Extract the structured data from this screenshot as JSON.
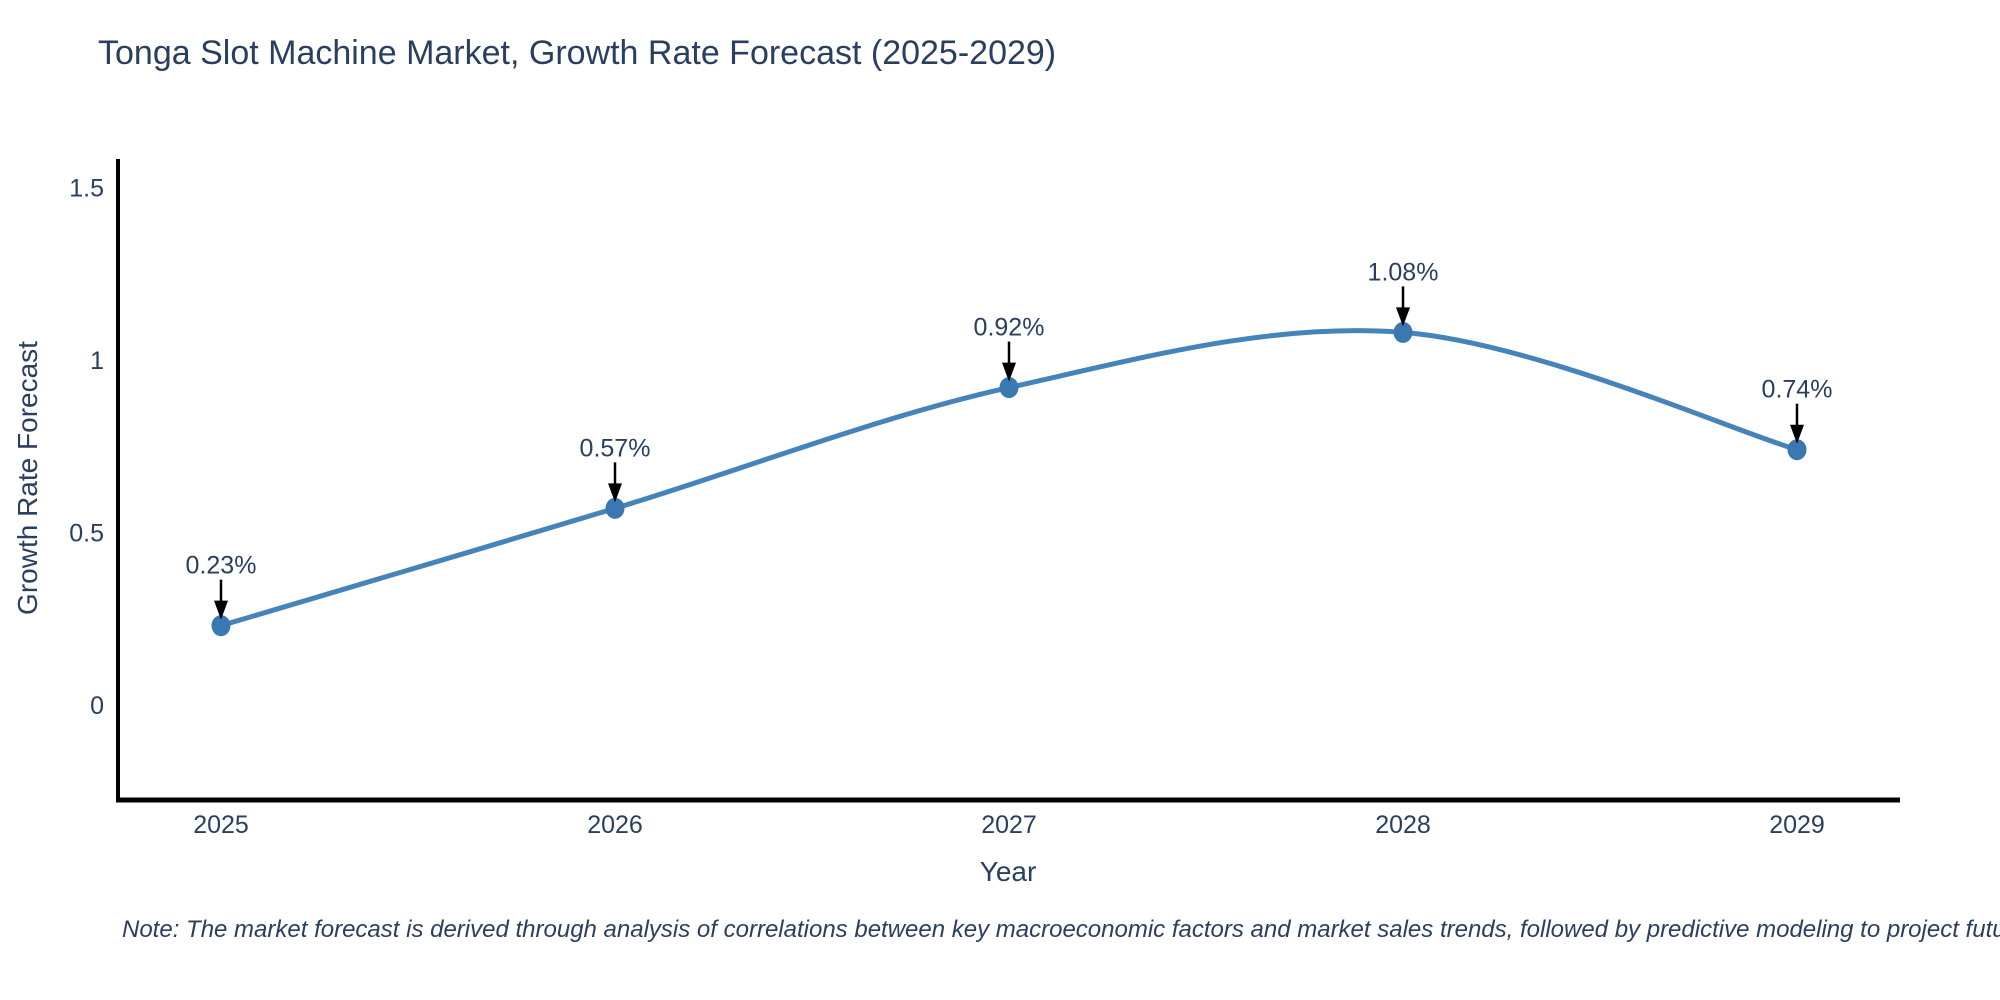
{
  "page": {
    "background": "#ffffff"
  },
  "note": "Note: The market forecast is derived through analysis of correlations between key macroeconomic factors and market sales trends, followed by predictive modeling to project future sales",
  "chart_data": {
    "type": "line",
    "title": "Tonga Slot Machine Market, Growth Rate Forecast (2025-2029)",
    "xlabel": "Year",
    "ylabel": "Growth Rate Forecast",
    "x": [
      2025,
      2026,
      2027,
      2028,
      2029
    ],
    "series": [
      {
        "name": "Growth Rate Forecast",
        "values": [
          0.23,
          0.57,
          0.92,
          1.08,
          0.74
        ]
      }
    ],
    "point_labels": [
      "0.23%",
      "0.57%",
      "0.92%",
      "1.08%",
      "0.74%"
    ],
    "xtick_labels": [
      "2025",
      "2026",
      "2027",
      "2028",
      "2029"
    ],
    "yticks": [
      0,
      0.5,
      1,
      1.5
    ],
    "ytick_labels": [
      "0",
      "0.5",
      "1",
      "1.5"
    ],
    "ylim": [
      -0.3,
      1.6
    ],
    "line_shape": "spline",
    "grid": false,
    "legend": "none",
    "colors": {
      "line": "#4584ba",
      "marker": "#3a78b2",
      "axis": "#000000",
      "text": "#2a3f5f",
      "annotation_arrow": "#000000"
    }
  }
}
